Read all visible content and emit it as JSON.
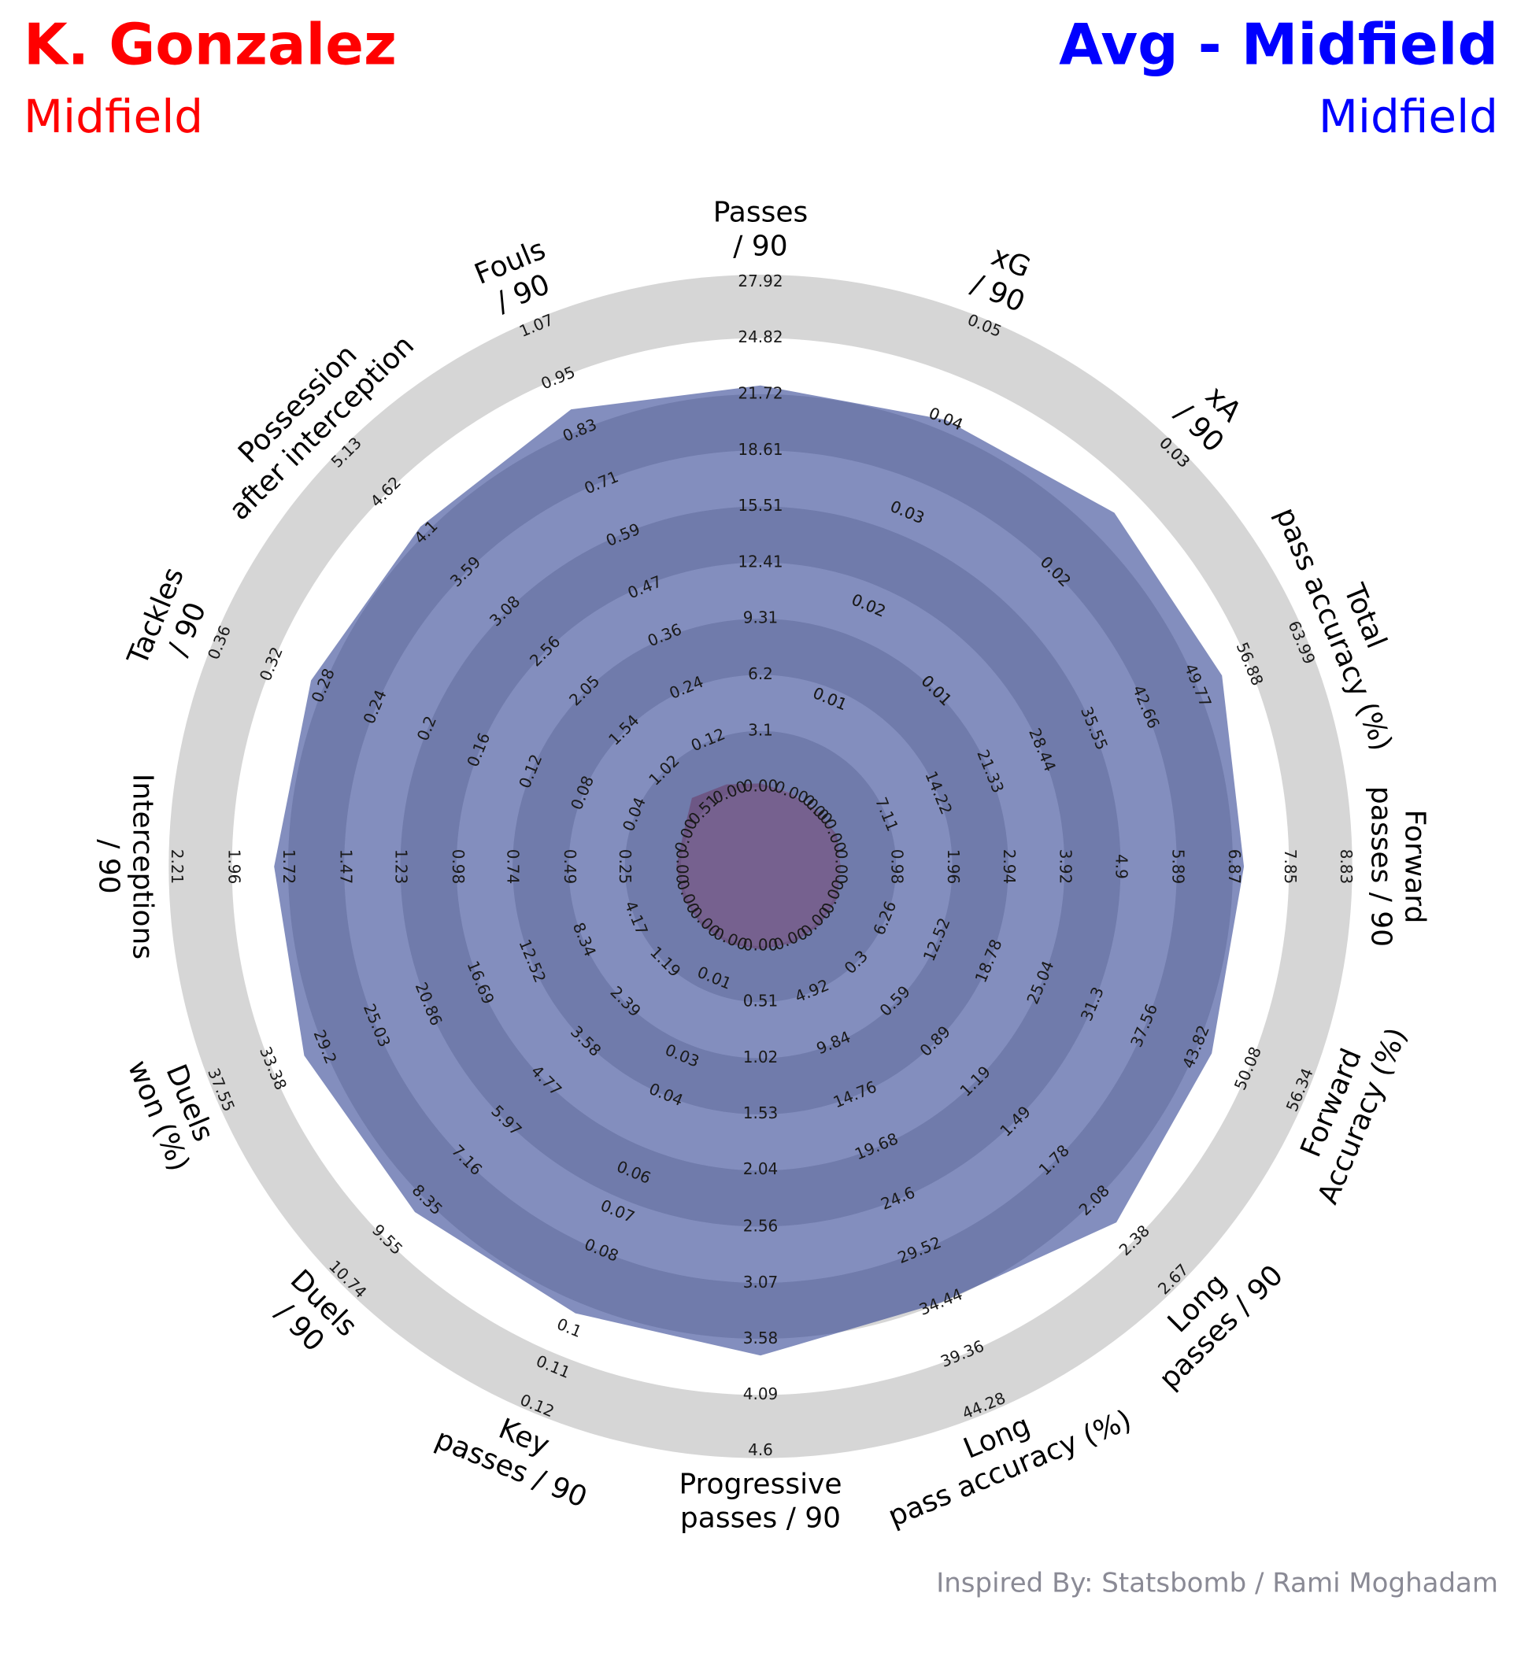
{
  "chart_data": {
    "type": "radar",
    "series": [
      {
        "name": "K. Gonzalez",
        "label": "Midfield",
        "color": "#ff0000",
        "fill": "#69345f",
        "alpha": 0.5,
        "values": [
          0.2,
          0.0,
          0.0,
          0.4,
          0.01,
          0.4,
          0.02,
          0.3,
          0.03,
          0.001,
          0.08,
          0.3,
          0.02,
          0.003,
          0.67,
          0.02
        ]
      },
      {
        "name": "Avg - Midfield",
        "label": "Midfield",
        "color": "#0000ff",
        "fill": "#1e3289",
        "alpha": 0.55,
        "values": [
          22.2,
          0.04,
          0.025,
          53.2,
          7.06,
          45.6,
          2.24,
          34.4,
          3.73,
          0.096,
          8.7,
          30.8,
          1.78,
          0.29,
          4.18,
          0.88
        ]
      }
    ],
    "categories": [
      "Passes\n/ 90",
      "xG\n/ 90",
      "xA\n/ 90",
      "Total\npass accuracy (%)",
      "Forward\npasses / 90",
      "Forward\nAccuracy (%)",
      "Long\npasses / 90",
      "Long\npass accuracy (%)",
      "Progressive\npasses / 90",
      "Key\npasses / 90",
      "Duels\n/ 90",
      "Duels\nwon (%)",
      "Interceptions\n/ 90",
      "Tackles\n/ 90",
      "Possession\nafter interception",
      "Fouls\n/ 90"
    ],
    "ticks": [
      [
        {
          "value": 0,
          "label": "0.00"
        },
        3.1,
        6.2,
        9.31,
        12.41,
        15.51,
        18.61,
        21.72,
        24.82,
        27.92
      ],
      [
        {
          "value": 0,
          "label": "0.00"
        },
        0.01,
        0.01,
        0.02,
        0.02,
        0.03,
        0.03,
        0.04,
        0.04,
        0.05
      ],
      [
        {
          "value": 0,
          "label": "0.00"
        },
        {
          "value": 0,
          "label": "0.0"
        },
        0.01,
        0.01,
        0.01,
        0.02,
        0.02,
        0.03,
        0.03,
        0.03
      ],
      [
        {
          "value": 0,
          "label": "0.00"
        },
        7.11,
        14.22,
        21.33,
        28.44,
        35.55,
        42.66,
        49.77,
        56.88,
        63.99
      ],
      [
        {
          "value": 0,
          "label": "0.00"
        },
        0.98,
        1.96,
        2.94,
        3.92,
        4.9,
        5.89,
        6.87,
        7.85,
        8.83
      ],
      [
        {
          "value": 0,
          "label": "0.00"
        },
        6.26,
        12.52,
        18.78,
        25.04,
        31.3,
        37.56,
        43.82,
        50.08,
        56.34
      ],
      [
        {
          "value": 0,
          "label": "0.00"
        },
        0.3,
        0.59,
        0.89,
        1.19,
        1.49,
        1.78,
        2.08,
        2.38,
        2.67
      ],
      [
        {
          "value": 0,
          "label": "0.00"
        },
        4.92,
        9.84,
        14.76,
        19.68,
        24.6,
        29.52,
        34.44,
        39.36,
        44.28
      ],
      [
        {
          "value": 0,
          "label": "0.00"
        },
        0.51,
        1.02,
        1.53,
        2.04,
        2.56,
        3.07,
        3.58,
        4.09,
        4.6
      ],
      [
        {
          "value": 0,
          "label": "0.00"
        },
        0.01,
        0.03,
        0.04,
        0.06,
        0.07,
        0.08,
        0.1,
        0.11,
        0.12
      ],
      [
        {
          "value": 0,
          "label": "0.00"
        },
        1.19,
        2.39,
        3.58,
        4.77,
        5.97,
        7.16,
        8.35,
        9.55,
        10.74
      ],
      [
        {
          "value": 0,
          "label": "0.00"
        },
        4.17,
        8.34,
        12.52,
        16.69,
        20.86,
        25.03,
        29.2,
        33.38,
        37.55
      ],
      [
        {
          "value": 0,
          "label": "0.00"
        },
        0.25,
        0.49,
        0.74,
        0.98,
        1.23,
        1.47,
        1.72,
        1.96,
        2.21
      ],
      [
        {
          "value": 0,
          "label": "0.00"
        },
        0.04,
        0.08,
        0.12,
        0.16,
        0.2,
        0.24,
        0.28,
        0.32,
        0.36
      ],
      [
        0.51,
        1.02,
        1.54,
        2.05,
        2.56,
        3.08,
        3.59,
        4.1,
        4.62,
        5.13
      ],
      [
        {
          "value": 0,
          "label": "0.00"
        },
        0.12,
        0.24,
        0.36,
        0.47,
        0.59,
        0.71,
        0.83,
        0.95,
        1.07
      ]
    ],
    "credit": "Inspired By: Statsbomb / Rami Moghadam"
  }
}
